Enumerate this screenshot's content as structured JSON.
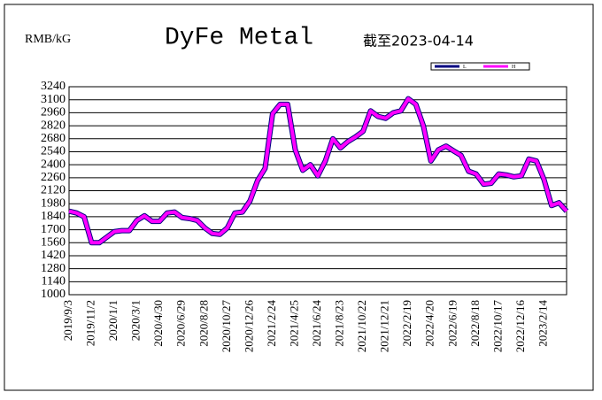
{
  "chart_data": {
    "type": "line",
    "title": "DyFe Metal",
    "subtitle": "截至2023-04-14",
    "y_label": "RMB/kG",
    "categories": [
      "2019/9/3",
      null,
      null,
      "2019/11/2",
      null,
      null,
      "2020/1/1",
      null,
      null,
      "2020/3/1",
      null,
      null,
      "2020/4/30",
      null,
      null,
      "2020/6/29",
      null,
      null,
      "2020/8/28",
      null,
      null,
      "2020/10/27",
      null,
      null,
      "2020/12/26",
      null,
      null,
      "2021/2/24",
      null,
      null,
      "2021/4/25",
      null,
      null,
      "2021/6/24",
      null,
      null,
      "2021/8/23",
      null,
      null,
      "2021/10/22",
      null,
      null,
      "2021/12/21",
      null,
      null,
      "2022/2/19",
      null,
      null,
      "2022/4/20",
      null,
      null,
      "2022/6/19",
      null,
      null,
      "2022/8/18",
      null,
      null,
      "2022/10/17",
      null,
      null,
      "2022/12/16",
      null,
      null,
      "2023/2/14",
      null,
      null,
      null
    ],
    "series": [
      {
        "name": "L",
        "color": "#000080",
        "values": [
          1900,
          1880,
          1840,
          1560,
          1560,
          1620,
          1680,
          1690,
          1690,
          1800,
          1850,
          1790,
          1790,
          1880,
          1890,
          1830,
          1820,
          1800,
          1720,
          1660,
          1650,
          1720,
          1880,
          1890,
          2010,
          2230,
          2360,
          2950,
          3050,
          3050,
          2560,
          2340,
          2400,
          2280,
          2440,
          2680,
          2580,
          2650,
          2700,
          2760,
          2980,
          2920,
          2900,
          2960,
          2980,
          3110,
          3050,
          2820,
          2440,
          2560,
          2600,
          2550,
          2500,
          2330,
          2300,
          2190,
          2200,
          2300,
          2290,
          2270,
          2280,
          2460,
          2440,
          2240,
          1960,
          1990,
          1900
        ]
      },
      {
        "name": "H",
        "color": "#ff00ff",
        "values": [
          1900,
          1880,
          1840,
          1560,
          1560,
          1620,
          1680,
          1690,
          1690,
          1800,
          1850,
          1790,
          1790,
          1880,
          1890,
          1830,
          1820,
          1800,
          1720,
          1660,
          1650,
          1720,
          1880,
          1890,
          2010,
          2230,
          2360,
          2950,
          3050,
          3050,
          2560,
          2340,
          2400,
          2280,
          2440,
          2680,
          2580,
          2650,
          2700,
          2760,
          2980,
          2920,
          2900,
          2960,
          2980,
          3110,
          3050,
          2820,
          2440,
          2560,
          2600,
          2550,
          2500,
          2330,
          2300,
          2190,
          2200,
          2300,
          2290,
          2270,
          2280,
          2460,
          2440,
          2240,
          1960,
          1990,
          1900
        ]
      }
    ],
    "ylim": [
      1000,
      3240
    ],
    "yticks": [
      1000,
      1140,
      1280,
      1420,
      1560,
      1700,
      1840,
      1980,
      2120,
      2260,
      2400,
      2540,
      2680,
      2820,
      2960,
      3100,
      3240
    ],
    "grid": true,
    "legend": "top-right"
  }
}
